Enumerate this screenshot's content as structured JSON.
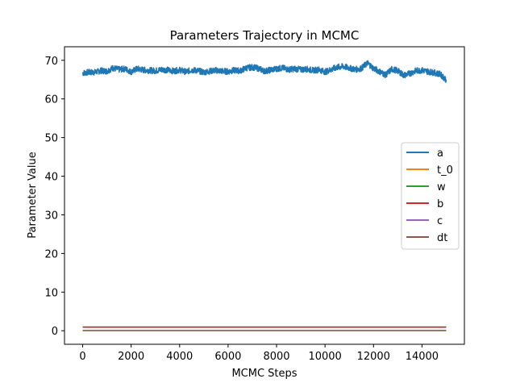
{
  "chart_data": {
    "type": "line",
    "title": "Parameters Trajectory in MCMC",
    "xlabel": "MCMC Steps",
    "ylabel": "Parameter Value",
    "xlim": [
      -750,
      15750
    ],
    "ylim": [
      -3.5,
      73.5
    ],
    "xticks": [
      0,
      2000,
      4000,
      6000,
      8000,
      10000,
      12000,
      14000
    ],
    "yticks": [
      0,
      10,
      20,
      30,
      40,
      50,
      60,
      70
    ],
    "legend_position": "center-right",
    "grid": false,
    "series": [
      {
        "name": "a",
        "color": "#1f77b4",
        "points": [
          [
            0,
            66.7
          ],
          [
            250,
            66.9
          ],
          [
            500,
            66.9
          ],
          [
            750,
            67.3
          ],
          [
            1000,
            67.2
          ],
          [
            1250,
            68.0
          ],
          [
            1500,
            67.6
          ],
          [
            1750,
            67.8
          ],
          [
            2000,
            67.0
          ],
          [
            2250,
            67.8
          ],
          [
            2500,
            67.5
          ],
          [
            2750,
            67.4
          ],
          [
            3000,
            67.3
          ],
          [
            3250,
            67.6
          ],
          [
            3500,
            67.5
          ],
          [
            3750,
            67.2
          ],
          [
            4000,
            67.5
          ],
          [
            4250,
            67.0
          ],
          [
            4500,
            67.5
          ],
          [
            4750,
            67.3
          ],
          [
            5000,
            66.9
          ],
          [
            5250,
            67.2
          ],
          [
            5500,
            67.4
          ],
          [
            5750,
            67.2
          ],
          [
            6000,
            67.1
          ],
          [
            6250,
            67.4
          ],
          [
            6500,
            67.3
          ],
          [
            6750,
            68.0
          ],
          [
            7000,
            68.2
          ],
          [
            7250,
            67.9
          ],
          [
            7500,
            67.2
          ],
          [
            7750,
            67.5
          ],
          [
            8000,
            67.8
          ],
          [
            8250,
            68.0
          ],
          [
            8500,
            67.6
          ],
          [
            8750,
            67.8
          ],
          [
            9000,
            67.6
          ],
          [
            9250,
            67.7
          ],
          [
            9500,
            67.4
          ],
          [
            9750,
            67.6
          ],
          [
            10000,
            67.0
          ],
          [
            10250,
            67.6
          ],
          [
            10500,
            68.2
          ],
          [
            10750,
            68.4
          ],
          [
            11000,
            68.0
          ],
          [
            11250,
            67.6
          ],
          [
            11500,
            67.9
          ],
          [
            11750,
            69.3
          ],
          [
            12000,
            67.9
          ],
          [
            12250,
            67.1
          ],
          [
            12500,
            66.2
          ],
          [
            12750,
            67.7
          ],
          [
            13000,
            67.3
          ],
          [
            13250,
            66.1
          ],
          [
            13500,
            66.6
          ],
          [
            13750,
            67.3
          ],
          [
            14000,
            67.4
          ],
          [
            14250,
            67.1
          ],
          [
            14500,
            66.8
          ],
          [
            14750,
            66.4
          ],
          [
            15000,
            65.0
          ]
        ]
      },
      {
        "name": "t_0",
        "color": "#ff7f0e",
        "points": [
          [
            0,
            0.0
          ],
          [
            15000,
            0.0
          ]
        ]
      },
      {
        "name": "w",
        "color": "#2ca02c",
        "points": [
          [
            0,
            0.05
          ],
          [
            15000,
            0.05
          ]
        ]
      },
      {
        "name": "b",
        "color": "#d62728",
        "points": [
          [
            0,
            0.9
          ],
          [
            15000,
            0.9
          ]
        ]
      },
      {
        "name": "c",
        "color": "#9467bd",
        "points": [
          [
            0,
            0.1
          ],
          [
            15000,
            0.1
          ]
        ]
      },
      {
        "name": "dt",
        "color": "#8c564b",
        "points": [
          [
            0,
            1.0
          ],
          [
            15000,
            1.0
          ]
        ]
      }
    ]
  }
}
